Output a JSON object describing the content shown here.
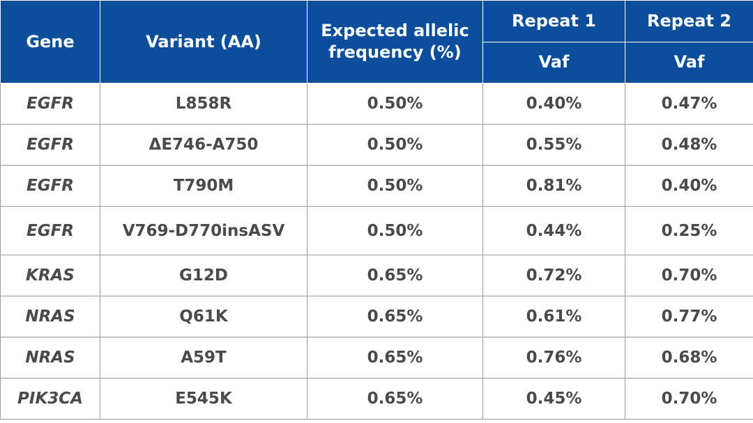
{
  "header": {
    "gene": "Gene",
    "variant": "Variant (AA)",
    "expected": "Expected allelic frequency (%)",
    "repeat1": "Repeat 1",
    "repeat2": "Repeat 2",
    "vaf1": "Vaf",
    "vaf2": "Vaf"
  },
  "rows": [
    {
      "gene": "EGFR",
      "variant": "L858R",
      "expected": "0.50%",
      "repeat1": "0.40%",
      "repeat2": "0.47%"
    },
    {
      "gene": "EGFR",
      "variant": "ΔE746-A750",
      "expected": "0.50%",
      "repeat1": "0.55%",
      "repeat2": "0.48%"
    },
    {
      "gene": "EGFR",
      "variant": "T790M",
      "expected": "0.50%",
      "repeat1": "0.81%",
      "repeat2": "0.40%"
    },
    {
      "gene": "EGFR",
      "variant": "V769-D770insASV",
      "expected": "0.50%",
      "repeat1": "0.44%",
      "repeat2": "0.25%"
    },
    {
      "gene": "KRAS",
      "variant": "G12D",
      "expected": "0.65%",
      "repeat1": "0.72%",
      "repeat2": "0.70%"
    },
    {
      "gene": "NRAS",
      "variant": "Q61K",
      "expected": "0.65%",
      "repeat1": "0.61%",
      "repeat2": "0.77%"
    },
    {
      "gene": "NRAS",
      "variant": "A59T",
      "expected": "0.65%",
      "repeat1": "0.76%",
      "repeat2": "0.68%"
    },
    {
      "gene": "PIK3CA",
      "variant": "E545K",
      "expected": "0.65%",
      "repeat1": "0.45%",
      "repeat2": "0.70%"
    }
  ],
  "colors": {
    "header_bg": "#0b4f9c",
    "header_text": "#ffffff",
    "body_text": "#4a4a4a",
    "grid": "#9a9a9a"
  }
}
